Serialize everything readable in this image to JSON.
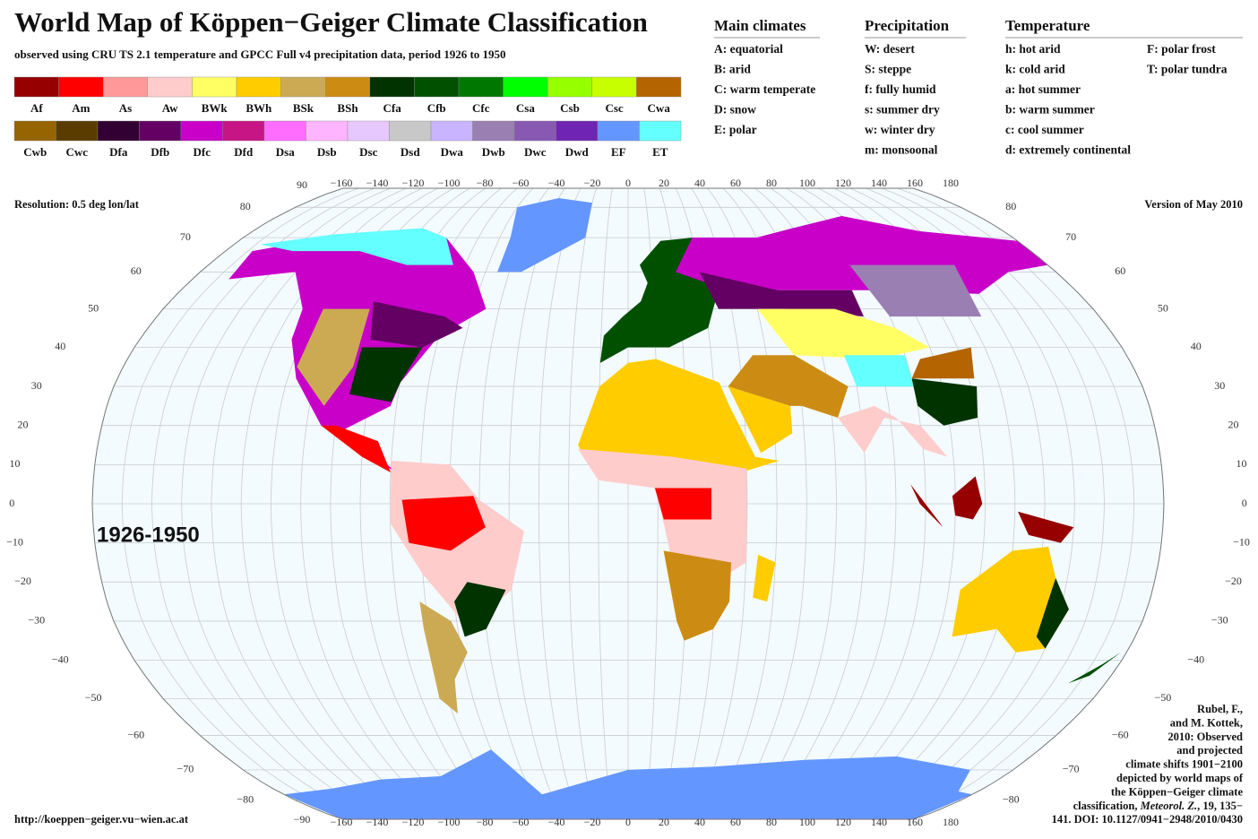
{
  "header": {
    "title": "World Map of Köppen−Geiger Climate Classification",
    "subtitle": "observed using CRU TS 2.1 temperature and GPCC Full v4 precipitation data, period 1926 to 1950"
  },
  "legend": {
    "rows": [
      [
        {
          "label": "Af",
          "color": "#960000"
        },
        {
          "label": "Am",
          "color": "#ff0000"
        },
        {
          "label": "As",
          "color": "#ff9999"
        },
        {
          "label": "Aw",
          "color": "#ffcccc"
        },
        {
          "label": "BWk",
          "color": "#ffff64"
        },
        {
          "label": "BWh",
          "color": "#ffcc00"
        },
        {
          "label": "BSk",
          "color": "#ccaa54"
        },
        {
          "label": "BSh",
          "color": "#cc8c14"
        },
        {
          "label": "Cfa",
          "color": "#003300"
        },
        {
          "label": "Cfb",
          "color": "#005000"
        },
        {
          "label": "Cfc",
          "color": "#007800"
        },
        {
          "label": "Csa",
          "color": "#00ff00"
        },
        {
          "label": "Csb",
          "color": "#96ff00"
        },
        {
          "label": "Csc",
          "color": "#c8ff00"
        },
        {
          "label": "Cwa",
          "color": "#b46400"
        }
      ],
      [
        {
          "label": "Cwb",
          "color": "#966400"
        },
        {
          "label": "Cwc",
          "color": "#5a3c00"
        },
        {
          "label": "Dfa",
          "color": "#320032"
        },
        {
          "label": "Dfb",
          "color": "#640064"
        },
        {
          "label": "Dfc",
          "color": "#c800c8"
        },
        {
          "label": "Dfd",
          "color": "#c71585"
        },
        {
          "label": "Dsa",
          "color": "#ff6dff"
        },
        {
          "label": "Dsb",
          "color": "#ffb4ff"
        },
        {
          "label": "Dsc",
          "color": "#e6c8ff"
        },
        {
          "label": "Dsd",
          "color": "#c8c8c8"
        },
        {
          "label": "Dwa",
          "color": "#c8b4ff"
        },
        {
          "label": "Dwb",
          "color": "#9a7fb3"
        },
        {
          "label": "Dwc",
          "color": "#8759b3"
        },
        {
          "label": "Dwd",
          "color": "#6f24b3"
        },
        {
          "label": "EF",
          "color": "#6496ff"
        },
        {
          "label": "ET",
          "color": "#64ffff"
        }
      ]
    ]
  },
  "key": {
    "main_climates": {
      "heading": "Main climates",
      "items": [
        "A: equatorial",
        "B: arid",
        "C: warm temperate",
        "D: snow",
        "E: polar"
      ]
    },
    "precipitation": {
      "heading": "Precipitation",
      "items": [
        "W: desert",
        "S: steppe",
        "f: fully humid",
        "s: summer dry",
        "w: winter dry",
        "m: monsoonal"
      ]
    },
    "temperature": {
      "heading": "Temperature",
      "items": [
        "h: hot arid",
        "k: cold arid",
        "a: hot summer",
        "b: warm summer",
        "c: cool summer",
        "d: extremely continental"
      ],
      "items_right": [
        "F: polar frost",
        "T: polar tundra"
      ]
    }
  },
  "map": {
    "resolution": "Resolution: 0.5 deg lon/lat",
    "version": "Version of May 2010",
    "period_label": "1926-1950",
    "url": "http://koeppen−geiger.vu−wien.ac.at",
    "graticule": {
      "top_corner": "90",
      "bottom_corner": "−90",
      "lon_labels": [
        "−160",
        "−140",
        "−120",
        "−100",
        "−80",
        "−60",
        "−40",
        "−20",
        "0",
        "20",
        "40",
        "60",
        "80",
        "100",
        "120",
        "140",
        "160",
        "180"
      ],
      "lat_labels": [
        "80",
        "70",
        "60",
        "50",
        "40",
        "30",
        "20",
        "10",
        "0",
        "−10",
        "−20",
        "−30",
        "−40",
        "−50",
        "−60",
        "−70",
        "−80"
      ]
    },
    "citation": [
      [
        {
          "text": "Rubel, F.,"
        }
      ],
      [
        {
          "text": "and M. Kottek,"
        }
      ],
      [
        {
          "text": "2010: Observed"
        }
      ],
      [
        {
          "text": "and projected"
        }
      ],
      [
        {
          "text": "climate shifts 1901−2100"
        }
      ],
      [
        {
          "text": "depicted by world maps of"
        }
      ],
      [
        {
          "text": "the Köppen−Geiger climate"
        }
      ],
      [
        {
          "text": "classification, "
        },
        {
          "text": "Meteorol. Z.",
          "italic": true
        },
        {
          "text": ", 19, 135−"
        }
      ],
      [
        {
          "text": "141. DOI: 10.1127/0941−2948/2010/0430"
        }
      ]
    ]
  }
}
